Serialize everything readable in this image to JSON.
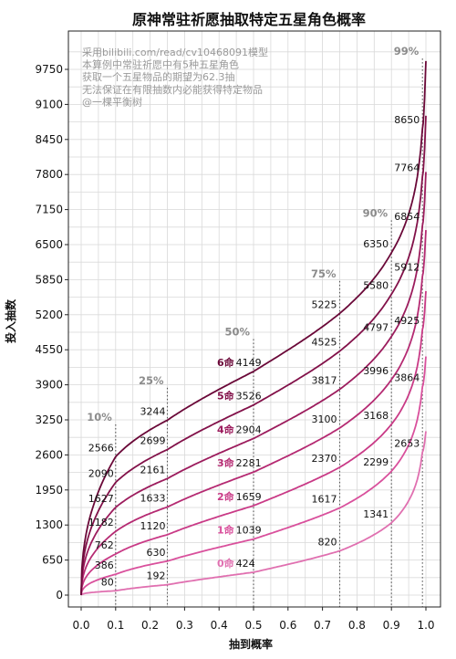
{
  "chart_data": {
    "type": "line",
    "title": "原神常驻祈愿抽取特定五星角色概率",
    "xlabel": "抽到概率",
    "ylabel": "投入抽数",
    "xlim": [
      0.0,
      1.0
    ],
    "ylim": [
      0,
      10150
    ],
    "xticks": [
      "0.0",
      "0.1",
      "0.2",
      "0.3",
      "0.4",
      "0.5",
      "0.6",
      "0.7",
      "0.8",
      "0.9",
      "1.0"
    ],
    "yticks": [
      "0",
      "650",
      "1300",
      "1950",
      "2600",
      "3250",
      "3900",
      "4550",
      "5200",
      "5850",
      "6500",
      "7150",
      "7800",
      "8450",
      "9100",
      "9750"
    ],
    "grid": true,
    "notes": [
      "采用bilibili.com/read/cv10468091模型",
      "本算例中常驻祈愿中有5种五星角色",
      "获取一个五星物品的期望为62.3抽",
      "无法保证在有限抽数内必能获得特定物品",
      "@一棵平衡树"
    ],
    "percentiles": [
      {
        "p": 0.1,
        "label": "10%"
      },
      {
        "p": 0.25,
        "label": "25%"
      },
      {
        "p": 0.5,
        "label": "50%"
      },
      {
        "p": 0.75,
        "label": "75%"
      },
      {
        "p": 0.9,
        "label": "90%"
      },
      {
        "p": 0.99,
        "label": "99%"
      }
    ],
    "series": [
      {
        "name": "0命",
        "color": "#e070b0",
        "mean": "424",
        "values": [
          80,
          192,
          424,
          820,
          1341,
          2653
        ]
      },
      {
        "name": "1命",
        "color": "#d9509c",
        "mean": "1039",
        "values": [
          386,
          630,
          1039,
          1617,
          2299,
          3864
        ]
      },
      {
        "name": "2命",
        "color": "#c93a86",
        "mean": "1659",
        "values": [
          762,
          1120,
          1659,
          2370,
          3168,
          4925
        ]
      },
      {
        "name": "3命",
        "color": "#b52a72",
        "mean": "2281",
        "values": [
          1182,
          1633,
          2281,
          3100,
          3996,
          5912
        ]
      },
      {
        "name": "4命",
        "color": "#9c1c5d",
        "mean": "2904",
        "values": [
          1627,
          2161,
          2904,
          3817,
          4797,
          6854
        ]
      },
      {
        "name": "5命",
        "color": "#821149",
        "mean": "3526",
        "values": [
          2090,
          2699,
          3526,
          4525,
          5580,
          7764
        ]
      },
      {
        "name": "6命",
        "color": "#6a0838",
        "mean": "4149",
        "values": [
          2566,
          3244,
          4149,
          5225,
          6350,
          8650
        ]
      }
    ]
  }
}
